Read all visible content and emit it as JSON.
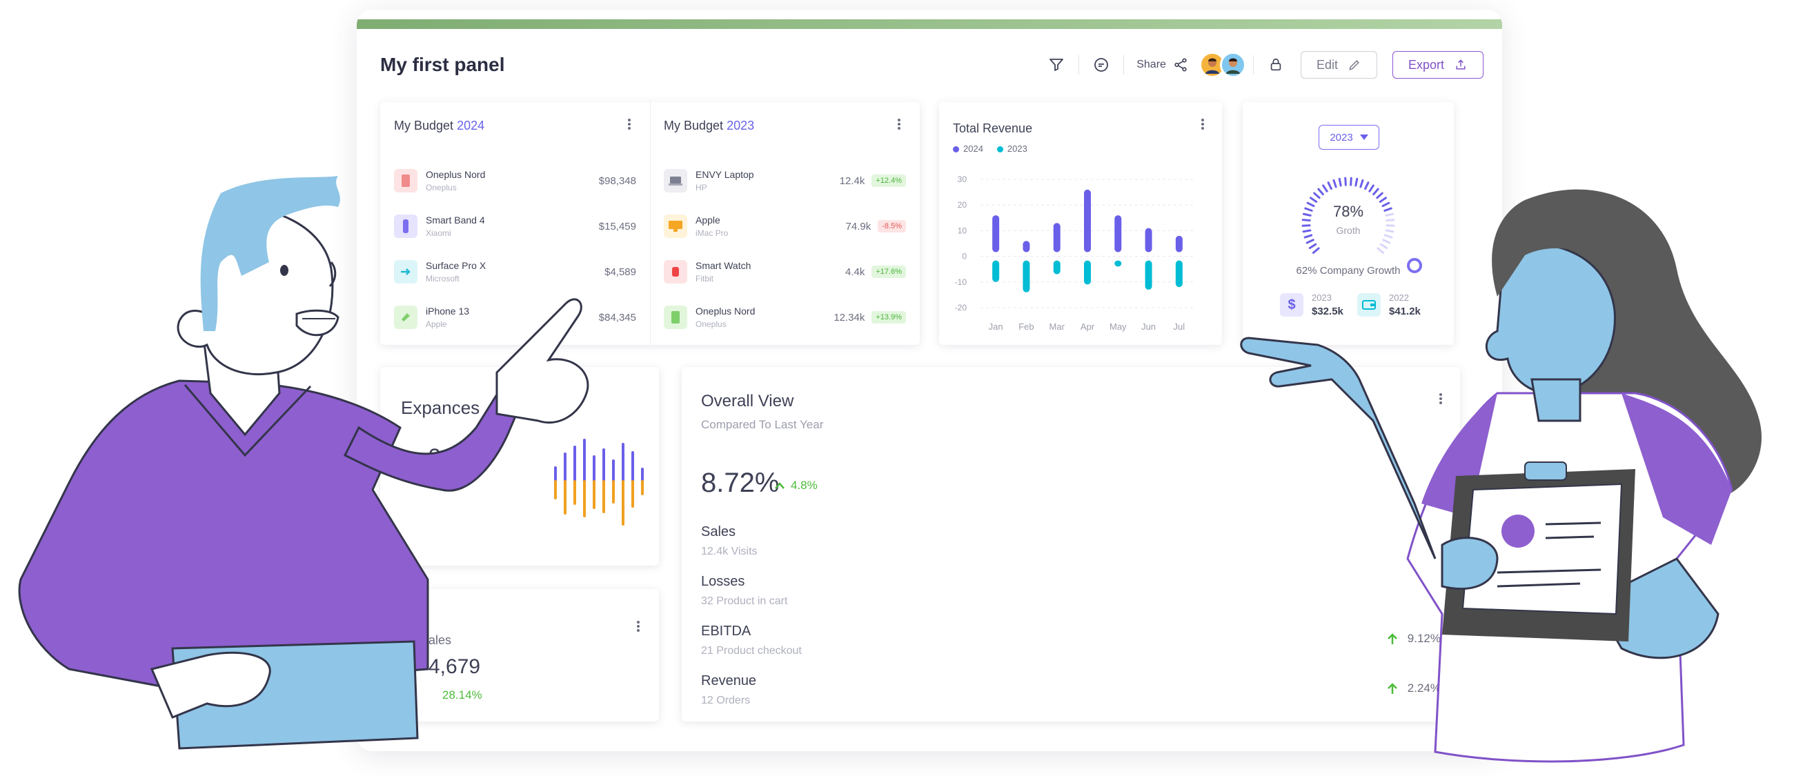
{
  "panel": {
    "title": "My first panel",
    "share_label": "Share",
    "edit_label": "Edit",
    "export_label": "Export"
  },
  "budget_2024": {
    "title": "My Budget",
    "year": "2024",
    "items": [
      {
        "name": "Oneplus Nord",
        "brand": "Oneplus",
        "value": "$98,348",
        "icon": "phone-icon"
      },
      {
        "name": "Smart Band 4",
        "brand": "Xiaomi",
        "value": "$15,459",
        "icon": "smart-band-icon"
      },
      {
        "name": "Surface Pro X",
        "brand": "Microsoft",
        "value": "$4,589",
        "icon": "tablet-icon"
      },
      {
        "name": "iPhone 13",
        "brand": "Apple",
        "value": "$84,345",
        "icon": "phone-icon"
      }
    ]
  },
  "budget_2023": {
    "title": "My Budget",
    "year": "2023",
    "items": [
      {
        "name": "ENVY Laptop",
        "brand": "HP",
        "value": "12.4k",
        "change": "+12.4%",
        "trend": "up",
        "icon": "laptop-icon"
      },
      {
        "name": "Apple",
        "brand": "iMac Pro",
        "value": "74.9k",
        "change": "-8.5%",
        "trend": "down",
        "icon": "monitor-icon"
      },
      {
        "name": "Smart Watch",
        "brand": "Fitbit",
        "value": "4.4k",
        "change": "+17.6%",
        "trend": "up",
        "icon": "watch-icon"
      },
      {
        "name": "Oneplus Nord",
        "brand": "Oneplus",
        "value": "12.34k",
        "change": "+13.9%",
        "trend": "up",
        "icon": "phone-icon"
      }
    ]
  },
  "revenue": {
    "title": "Total Revenue",
    "legend": [
      "2024",
      "2023"
    ],
    "colors": {
      "2024": "#6a5fe8",
      "2023": "#00bcd4"
    }
  },
  "chart_data": {
    "type": "bar",
    "title": "Total Revenue",
    "categories": [
      "Jan",
      "Feb",
      "Mar",
      "Apr",
      "May",
      "Jun",
      "Jul"
    ],
    "series": [
      {
        "name": "2024",
        "values": [
          16,
          6,
          13,
          26,
          16,
          11,
          8
        ]
      },
      {
        "name": "2023",
        "values": [
          -10,
          -14,
          -7,
          -11,
          -4,
          -13,
          -12
        ]
      }
    ],
    "yticks": [
      "30",
      "20",
      "10",
      "0",
      "-10",
      "-20"
    ],
    "ylim": [
      -20,
      30
    ],
    "grid": true
  },
  "growth": {
    "year_select": "2023",
    "percent": "78%",
    "label": "Groth",
    "caption": "62% Company Growth",
    "stats": [
      {
        "year": "2023",
        "value": "$32.5k",
        "icon": "dollar-icon"
      },
      {
        "year": "2022",
        "value": "$41.2k",
        "icon": "wallet-icon"
      }
    ],
    "progress": 0.78
  },
  "expenses": {
    "title": "Expances",
    "value_partial": "34"
  },
  "sales_card": {
    "title_partial": "ales",
    "value_partial": "4,679",
    "change_partial": "28.14%"
  },
  "overview": {
    "title": "Overall View",
    "subtitle": "Compared To Last Year",
    "percent": "8.72%",
    "change": "4.8%",
    "rows": [
      {
        "name": "Sales",
        "sub": "12.4k Visits",
        "change": ""
      },
      {
        "name": "Losses",
        "sub": "32 Product in cart",
        "change": ""
      },
      {
        "name": "EBITDA",
        "sub": "21 Product checkout",
        "change": "9.12%"
      },
      {
        "name": "Revenue",
        "sub": "12 Orders",
        "change": "2.24%"
      }
    ]
  }
}
